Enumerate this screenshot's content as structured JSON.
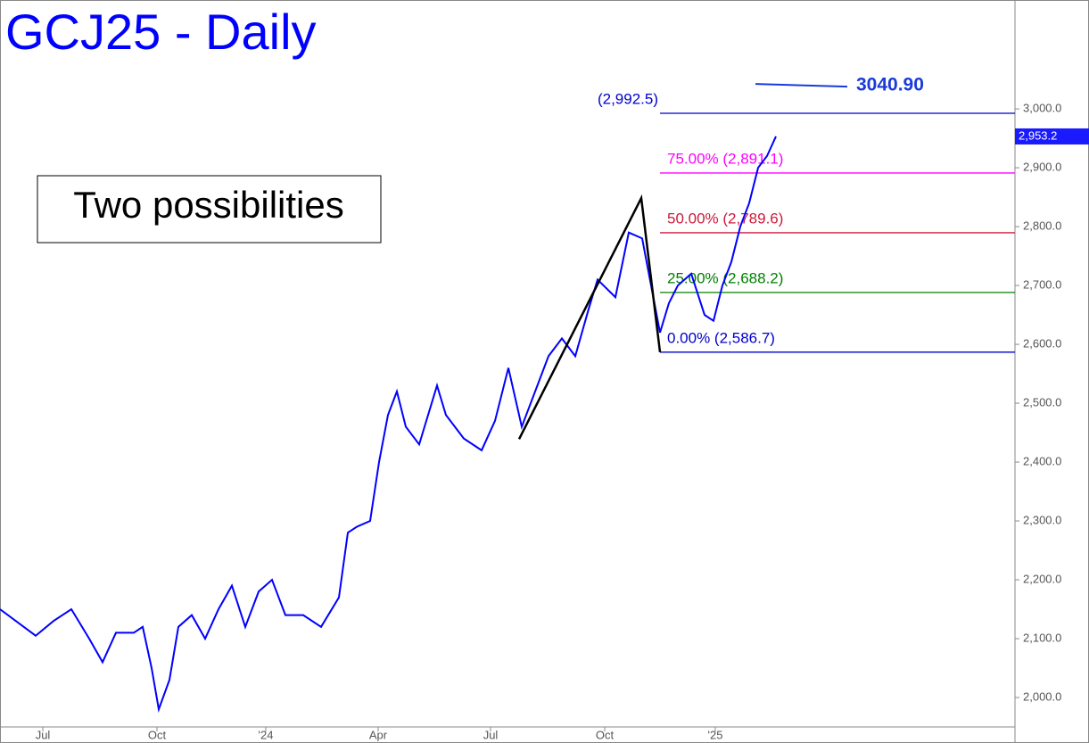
{
  "chart_data": {
    "type": "line",
    "title": "GCJ25 - Daily",
    "annotation": "Two possibilities",
    "x": [
      0,
      20,
      30,
      40,
      50,
      57.5,
      65,
      75,
      80,
      85,
      89,
      95,
      100,
      107.5,
      115,
      122.5,
      130,
      137.5,
      145,
      152.5,
      160,
      170,
      180,
      190,
      195,
      200,
      207.5,
      212.5,
      217.5,
      222.5,
      227.5,
      235,
      245,
      250,
      260,
      270,
      277.5,
      285,
      292.5,
      300,
      307.5,
      315,
      322.5,
      330,
      335,
      345,
      352.5,
      360,
      365,
      370,
      375,
      380,
      387.5,
      395,
      400,
      405,
      410,
      415,
      420,
      425,
      430,
      435
    ],
    "series": [
      {
        "color": "#0000ff",
        "values": [
          2150,
          2105,
          2130,
          2150,
          2100,
          2060,
          2110,
          2110,
          2120,
          2050,
          1980,
          2030,
          2120,
          2140,
          2100,
          2150,
          2190,
          2120,
          2180,
          2200,
          2140,
          2140,
          2120,
          2170,
          2280,
          2290,
          2300,
          2400,
          2480,
          2520,
          2460,
          2430,
          2530,
          2480,
          2440,
          2420,
          2470,
          2560,
          2460,
          2520,
          2580,
          2610,
          2580,
          2660,
          2710,
          2680,
          2790,
          2780,
          2700,
          2620,
          2670,
          2700,
          2720,
          2650,
          2640,
          2700,
          2740,
          2800,
          2840,
          2900,
          2920,
          2953.2
        ]
      }
    ],
    "xlim": [
      0,
      569
    ],
    "xticks": [
      {
        "value": 24,
        "label": "Jul"
      },
      {
        "value": 88,
        "label": "Oct"
      },
      {
        "value": 149,
        "label": "'24"
      },
      {
        "value": 212,
        "label": "Apr"
      },
      {
        "value": 275,
        "label": "Jul"
      },
      {
        "value": 339,
        "label": "Oct"
      },
      {
        "value": 401,
        "label": "'25"
      }
    ],
    "ylim": [
      1950,
      3185
    ],
    "yticks": [
      {
        "value": 2000,
        "label": "2,000.0"
      },
      {
        "value": 2100,
        "label": "2,100.0"
      },
      {
        "value": 2200,
        "label": "2,200.0"
      },
      {
        "value": 2300,
        "label": "2,300.0"
      },
      {
        "value": 2400,
        "label": "2,400.0"
      },
      {
        "value": 2500,
        "label": "2,500.0"
      },
      {
        "value": 2600,
        "label": "2,600.0"
      },
      {
        "value": 2700,
        "label": "2,700.0"
      },
      {
        "value": 2800,
        "label": "2,800.0"
      },
      {
        "value": 2900,
        "label": "2,900.0"
      },
      {
        "value": 3000,
        "label": "3,000.0"
      }
    ],
    "levels": [
      {
        "value": 2992.5,
        "label": "(2,992.5)",
        "color": "#0000cc"
      },
      {
        "value": 2891.1,
        "label": "75.00% (2,891.1)",
        "color": "#ff00ff"
      },
      {
        "value": 2789.6,
        "label": "50.00% (2,789.6)",
        "color": "#cc1a3a"
      },
      {
        "value": 2688.2,
        "label": "25.00% (2,688.2)",
        "color": "#008000"
      },
      {
        "value": 2586.7,
        "label": "0.00% (2,586.7)",
        "color": "#0000cc"
      }
    ],
    "level_start": 370,
    "pattern": {
      "x": [
        291,
        359.5,
        370
      ],
      "values": [
        2439,
        2848.5,
        2586.7
      ],
      "color": "#000000"
    },
    "target": {
      "value": 3040.9,
      "label": "3040.90",
      "x": [
        423.5,
        475
      ],
      "color": "#1a3adb"
    },
    "last_price": {
      "value": 2953.2,
      "label": "2,953.2"
    }
  }
}
